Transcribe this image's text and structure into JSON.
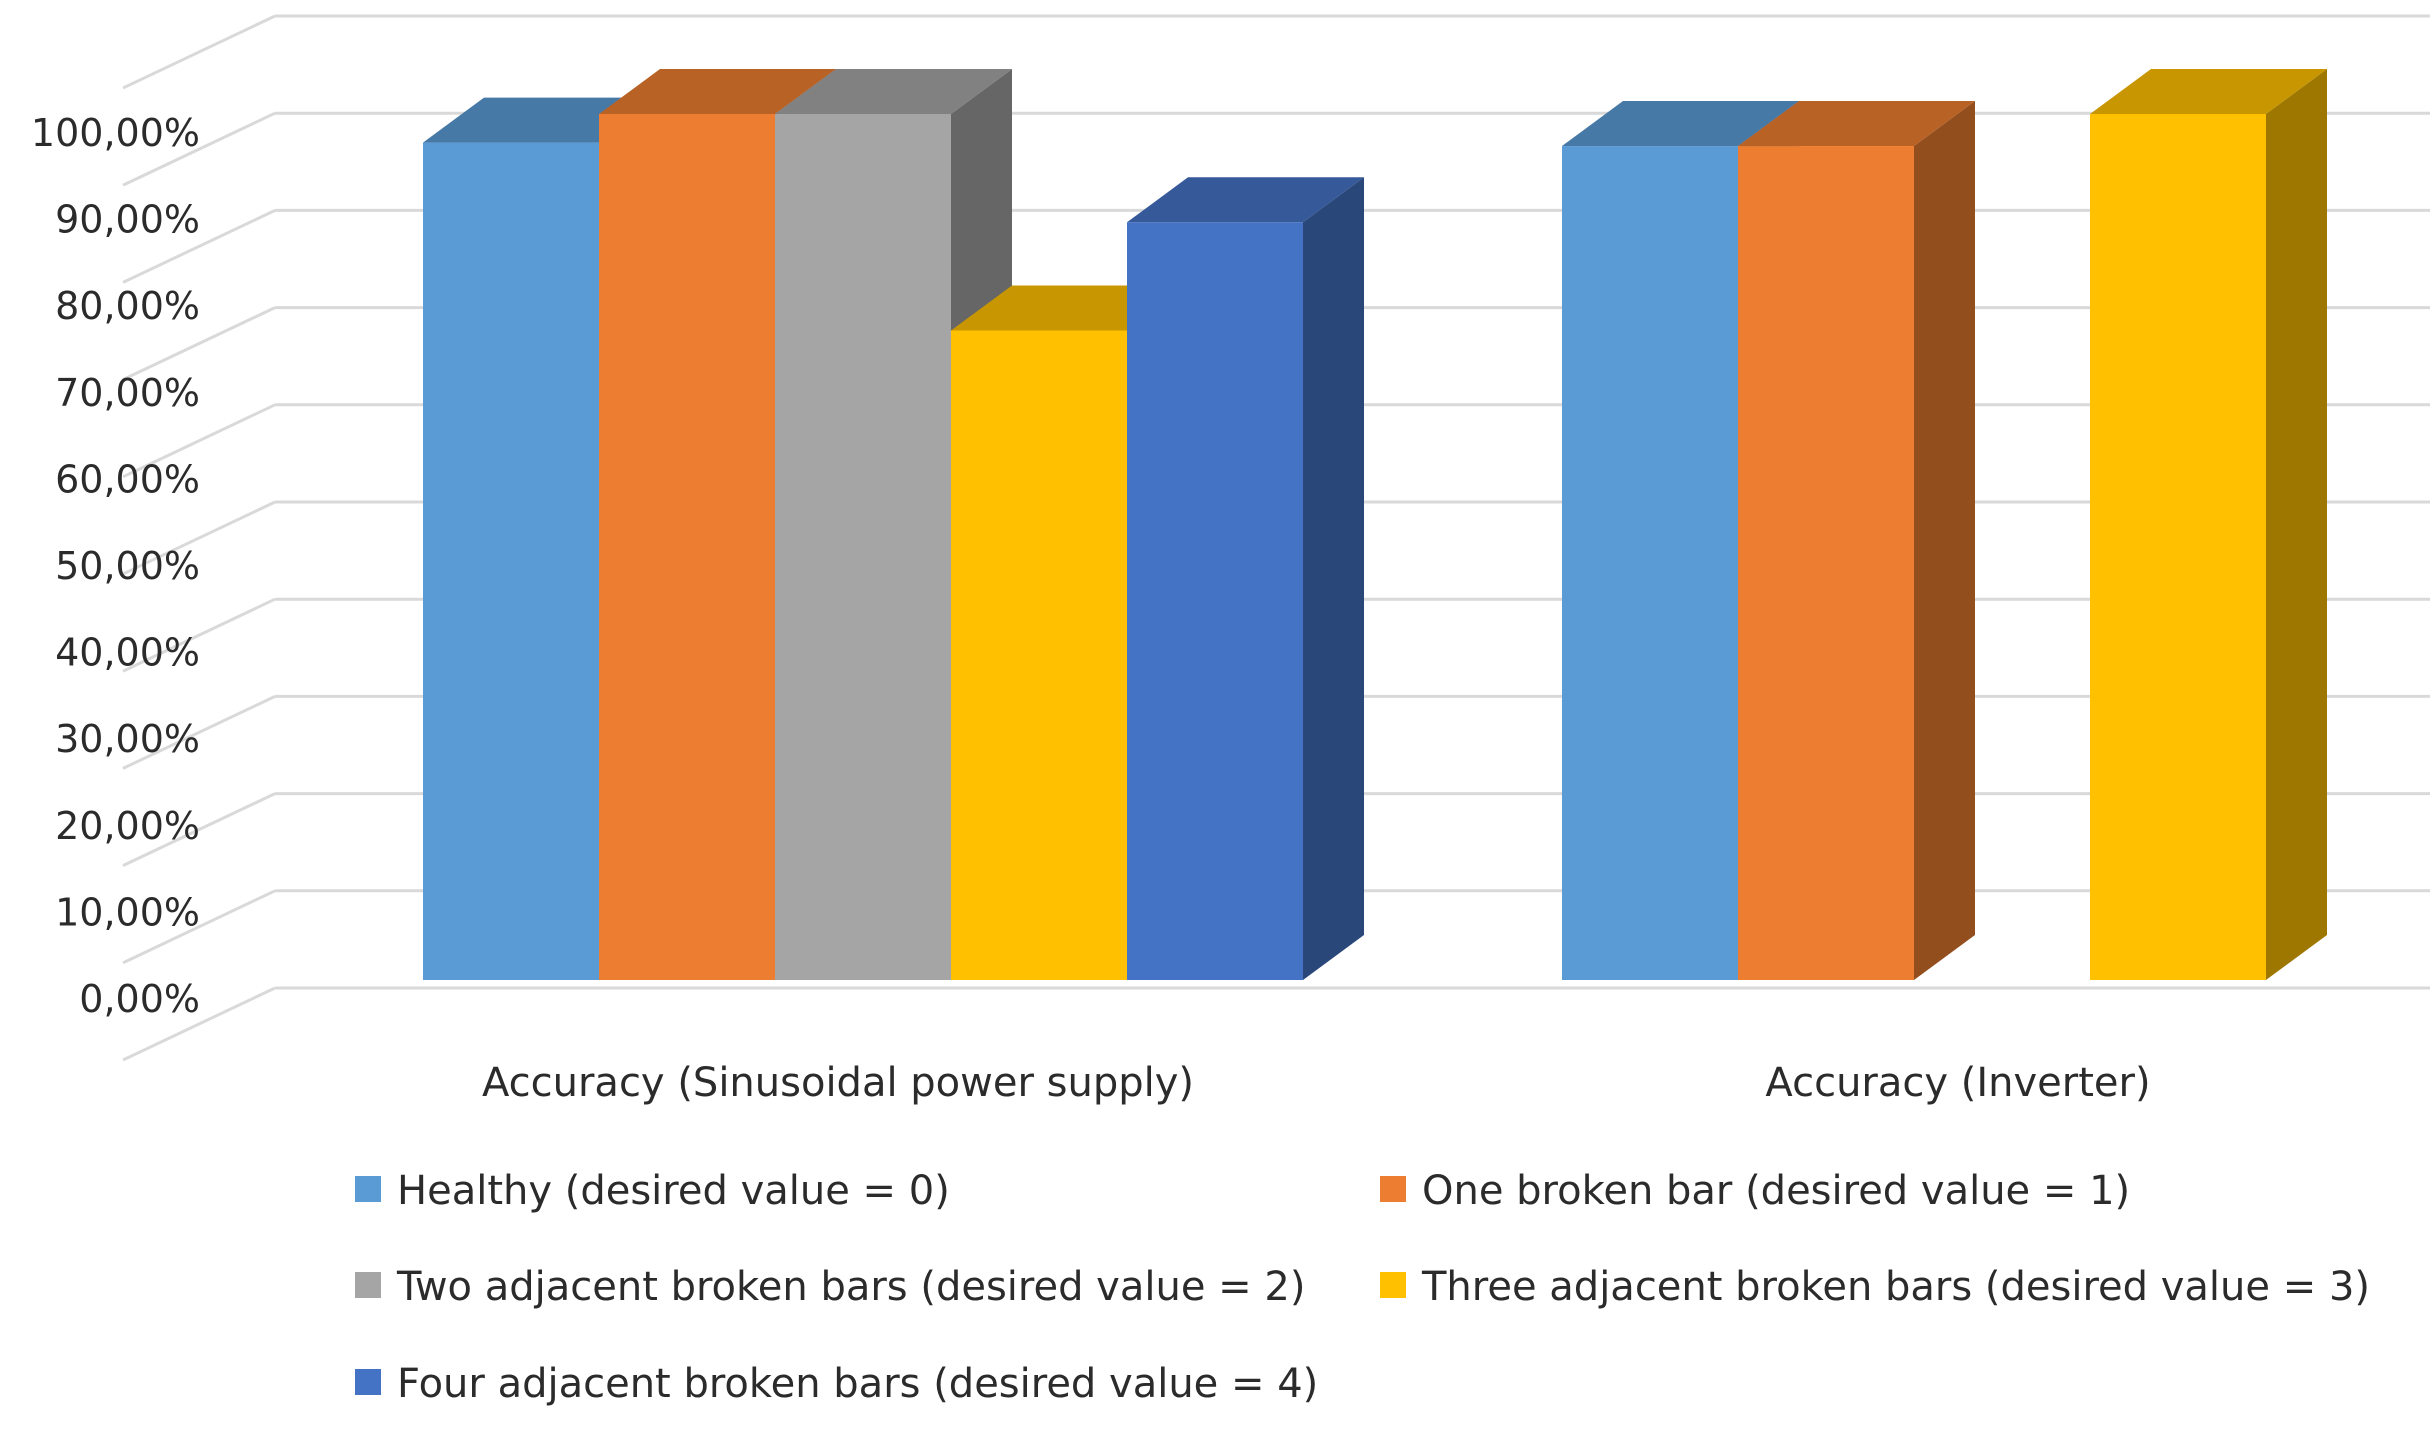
{
  "chart_data": {
    "type": "bar",
    "subtype": "3d-clustered-column",
    "title": "",
    "xlabel": "",
    "ylabel": "",
    "ylim": [
      0,
      100
    ],
    "y_tick_step": 10,
    "y_tick_labels": [
      "0,00%",
      "10,00%",
      "20,00%",
      "30,00%",
      "40,00%",
      "50,00%",
      "60,00%",
      "70,00%",
      "80,00%",
      "90,00%",
      "100,00%"
    ],
    "gridlines": true,
    "legend_position": "bottom",
    "categories": [
      "Accuracy (Sinusoidal power supply)",
      "Accuracy (Inverter)"
    ],
    "series": [
      {
        "name": "Healthy (desired value = 0)",
        "color": "#5b9bd5",
        "values": [
          96.7,
          96.3
        ]
      },
      {
        "name": "One broken bar (desired value = 1)",
        "color": "#ed7d31",
        "values": [
          100,
          96.3
        ]
      },
      {
        "name": "Two adjacent broken bars (desired value = 2)",
        "color": "#a5a5a5",
        "values": [
          100,
          null
        ]
      },
      {
        "name": "Three adjacent broken bars (desired value = 3)",
        "color": "#ffc000",
        "values": [
          75,
          100
        ]
      },
      {
        "name": "Four adjacent broken bars (desired value = 4)",
        "color": "#4472c4",
        "values": [
          87.5,
          null
        ]
      }
    ]
  }
}
